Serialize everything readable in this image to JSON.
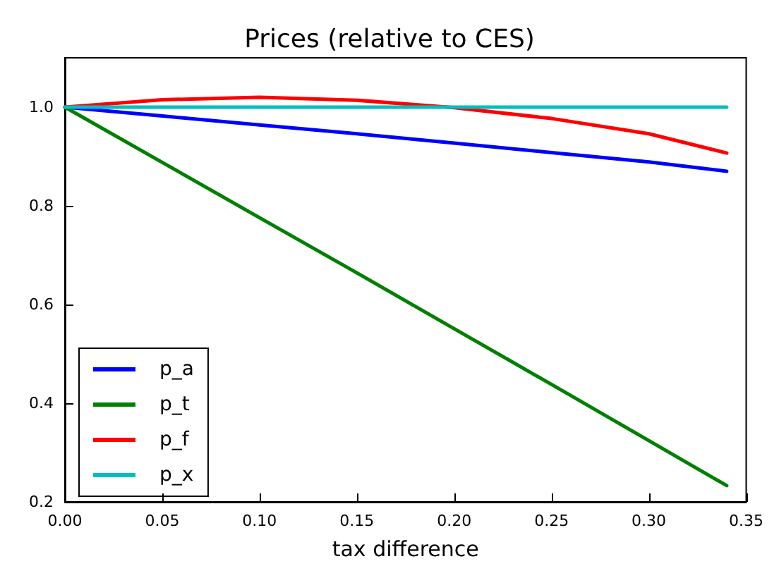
{
  "chart_data": {
    "type": "line",
    "title": "Prices (relative to CES)",
    "xlabel": "tax difference",
    "x": [
      0,
      0.05,
      0.1,
      0.15,
      0.2,
      0.25,
      0.3,
      0.34
    ],
    "series": [
      {
        "name": "p_a",
        "color": "#0000ff",
        "values": [
          1.0,
          0.982,
          0.964,
          0.946,
          0.927,
          0.908,
          0.889,
          0.87
        ]
      },
      {
        "name": "p_t",
        "color": "#008000",
        "values": [
          1.0,
          0.888,
          0.776,
          0.664,
          0.551,
          0.438,
          0.324,
          0.233
        ]
      },
      {
        "name": "p_f",
        "color": "#ff0000",
        "values": [
          1.0,
          1.015,
          1.02,
          1.014,
          0.999,
          0.977,
          0.946,
          0.907
        ]
      },
      {
        "name": "p_x",
        "color": "#00bfbf",
        "values": [
          1.0,
          1.0,
          1.0,
          1.0,
          1.0,
          1.0,
          1.0,
          1.0
        ]
      }
    ],
    "xlim": [
      0,
      0.35
    ],
    "xticks": [
      {
        "value": 0,
        "label": "0.00"
      },
      {
        "value": 0.05,
        "label": "0.05"
      },
      {
        "value": 0.1,
        "label": "0.10"
      },
      {
        "value": 0.15,
        "label": "0.15"
      },
      {
        "value": 0.2,
        "label": "0.20"
      },
      {
        "value": 0.25,
        "label": "0.25"
      },
      {
        "value": 0.3,
        "label": "0.30"
      },
      {
        "value": 0.35,
        "label": "0.35"
      }
    ],
    "ylim": [
      0.2,
      1.1
    ],
    "yticks": [
      {
        "value": 0.2,
        "label": "0.2"
      },
      {
        "value": 0.4,
        "label": "0.4"
      },
      {
        "value": 0.6,
        "label": "0.6"
      },
      {
        "value": 0.8,
        "label": "0.8"
      },
      {
        "value": 1.0,
        "label": "1.0"
      }
    ],
    "grid": false,
    "legend": "bottom left",
    "marker": "none",
    "line_style": "solid"
  }
}
